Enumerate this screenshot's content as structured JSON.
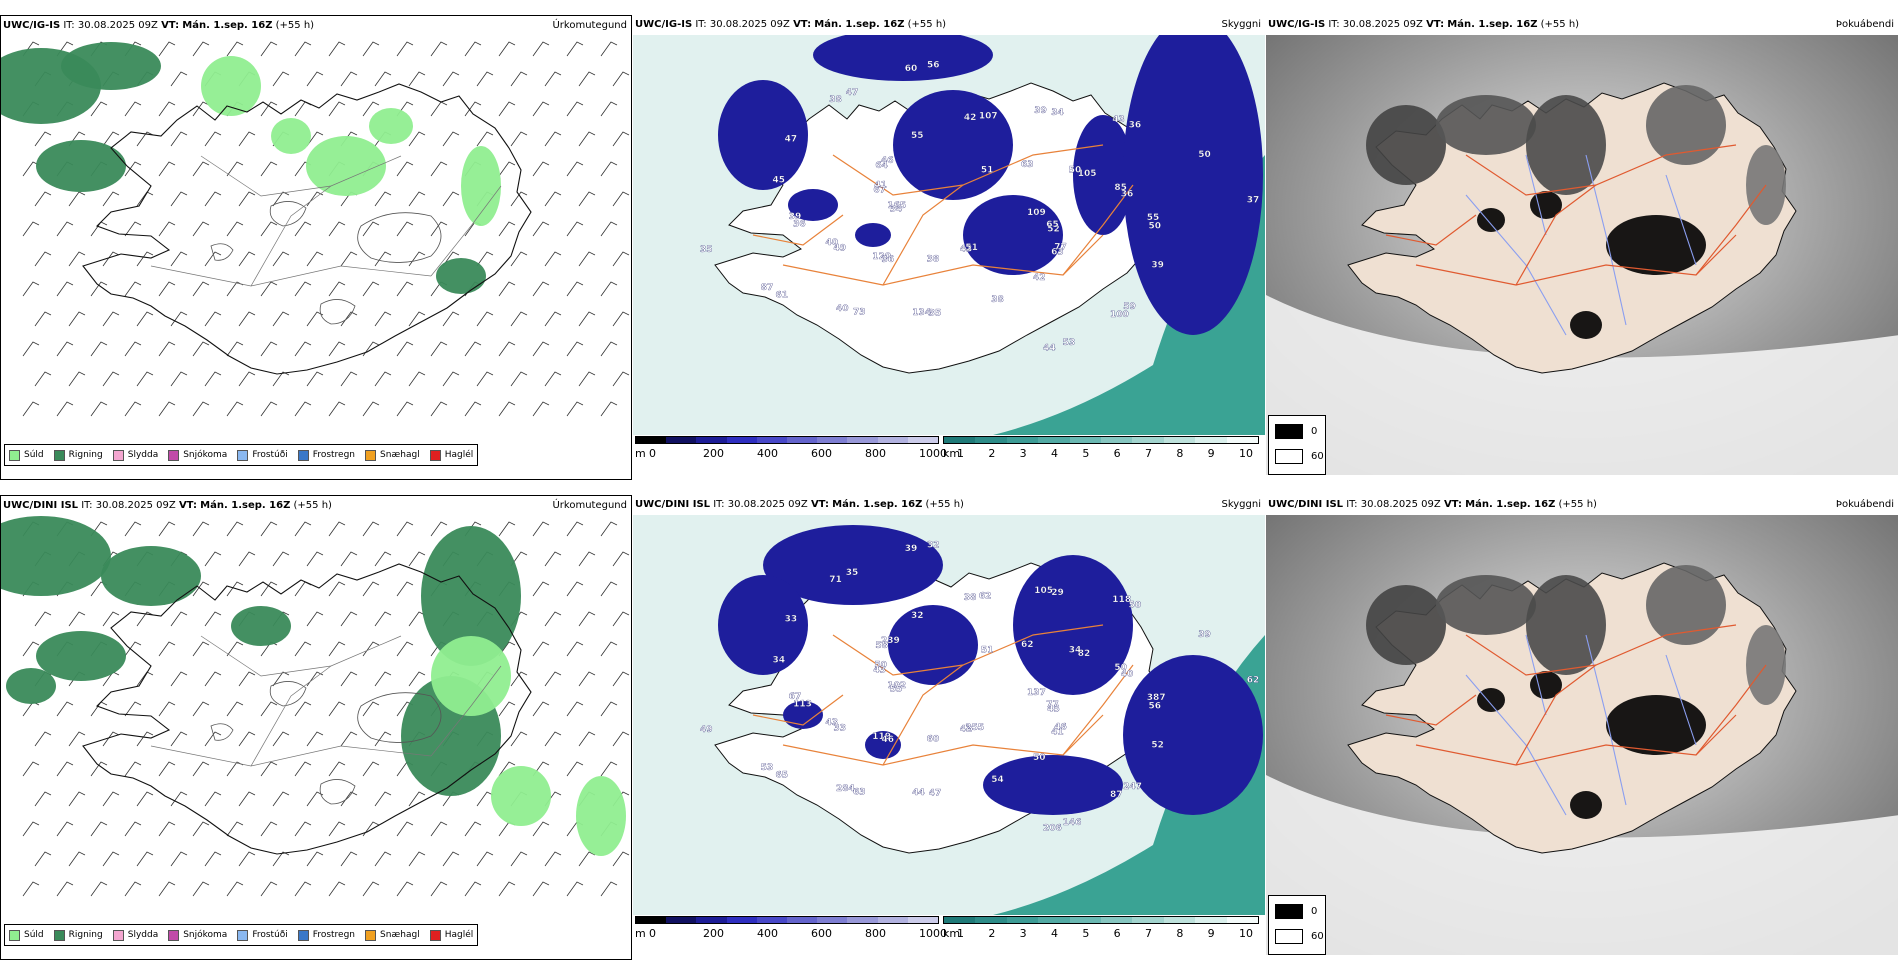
{
  "rows": [
    {
      "precip": {
        "model": "UWC/IG-IS",
        "it_label": "IT:",
        "it": "30.08.2025 09Z",
        "vt_label": "VT:",
        "vt": "Mán. 1.sep. 16Z",
        "lead": "(+55 h)",
        "corner": "Úrkomutegund"
      },
      "cloud": {
        "model": "UWC/IG-IS",
        "it_label": "IT:",
        "it": "30.08.2025 09Z",
        "vt_label": "VT:",
        "vt": "Mán. 1.sep. 16Z",
        "lead": "(+55 h)",
        "corner": "Skyggni",
        "labels": [
          "109",
          "120",
          "107",
          "100",
          "165",
          "105",
          "134",
          "47",
          "52",
          "40",
          "34",
          "44",
          "41",
          "36",
          "40",
          "56",
          "63",
          "39",
          "36",
          "43",
          "46",
          "50",
          "87",
          "51",
          "42",
          "45",
          "50",
          "38",
          "55",
          "39",
          "35",
          "63",
          "38",
          "47",
          "37",
          "36",
          "42",
          "59",
          "34",
          "50",
          "35",
          "38",
          "65",
          "49",
          "39",
          "53",
          "67",
          "85",
          "73",
          "60",
          "77",
          "36",
          "43",
          "51",
          "64",
          "55",
          "61"
        ]
      },
      "fog": {
        "model": "UWC/IG-IS",
        "it_label": "IT:",
        "it": "30.08.2025 09Z",
        "vt_label": "VT:",
        "vt": "Mán. 1.sep. 16Z",
        "lead": "(+55 h)",
        "corner": "Þokuábendi",
        "legend_black": "0",
        "legend_white": "60"
      }
    },
    {
      "precip": {
        "model": "UWC/DINI ISL",
        "it_label": "IT:",
        "it": "30.08.2025 09Z",
        "vt_label": "VT:",
        "vt": "Mán. 1.sep. 16Z",
        "lead": "(+55 h)",
        "corner": "Úrkomutegund"
      },
      "cloud": {
        "model": "UWC/DINI ISL",
        "it_label": "IT:",
        "it": "30.08.2025 09Z",
        "vt_label": "VT:",
        "vt": "Mán. 1.sep. 16Z",
        "lead": "(+55 h)",
        "corner": "Skyggni",
        "labels": [
          "137",
          "119",
          "62",
          "87",
          "102",
          "82",
          "44",
          "35",
          "45",
          "43",
          "29",
          "206",
          "50",
          "40",
          "284",
          "32",
          "41",
          "67",
          "50",
          "42",
          "239",
          "56",
          "53",
          "51",
          "50",
          "34",
          "39",
          "60",
          "32",
          "52",
          "49",
          "62",
          "54",
          "33",
          "62",
          "46",
          "38",
          "247",
          "55",
          "34",
          "47",
          "71",
          "77",
          "33",
          "105",
          "146",
          "43",
          "50",
          "63",
          "39",
          "46",
          "113",
          "118",
          "255",
          "58",
          "387",
          "65"
        ]
      },
      "fog": {
        "model": "UWC/DINI ISL",
        "it_label": "IT:",
        "it": "30.08.2025 09Z",
        "vt_label": "VT:",
        "vt": "Mán. 1.sep. 16Z",
        "lead": "(+55 h)",
        "corner": "Þokuábendi",
        "legend_black": "0",
        "legend_white": "60"
      }
    }
  ],
  "precip_legend": [
    {
      "label": "Súld",
      "color": "#90ee90"
    },
    {
      "label": "Rigning",
      "color": "#3a8a5a"
    },
    {
      "label": "Slydda",
      "color": "#f4a6d0"
    },
    {
      "label": "Snjókoma",
      "color": "#c04aa8"
    },
    {
      "label": "Frostúði",
      "color": "#8ab8f0"
    },
    {
      "label": "Frostregn",
      "color": "#3a78c8"
    },
    {
      "label": "Snæhagl",
      "color": "#f0a020"
    },
    {
      "label": "Haglél",
      "color": "#e02020"
    }
  ],
  "cloudbase_bar": {
    "unit": "m",
    "ticks": [
      "0",
      "200",
      "400",
      "600",
      "800",
      "1000"
    ],
    "colors": [
      "#000000",
      "#101060",
      "#1c1c96",
      "#2e2ec0",
      "#4848c8",
      "#6464cc",
      "#7e7ed2",
      "#9898d8",
      "#b2b2e0",
      "#ccccea"
    ]
  },
  "visibility_bar": {
    "unit": "km",
    "ticks": [
      "1",
      "2",
      "3",
      "4",
      "5",
      "6",
      "7",
      "8",
      "9",
      "10"
    ],
    "colors": [
      "#1f7a78",
      "#2d8c88",
      "#3d9c96",
      "#52aaa4",
      "#6ab8b2",
      "#86c6c0",
      "#a2d4ce",
      "#bee2dc",
      "#daf0ec",
      "#f4fbfa"
    ]
  },
  "colors": {
    "rain": "#3a8a5a",
    "drizzle": "#90ee90",
    "cloud_blue": "#1e1e9c",
    "vis_sea": "#3aa394",
    "fog_land": "#efe0d2",
    "roads": "#e8823a",
    "rivers": "#8a9ef0"
  }
}
